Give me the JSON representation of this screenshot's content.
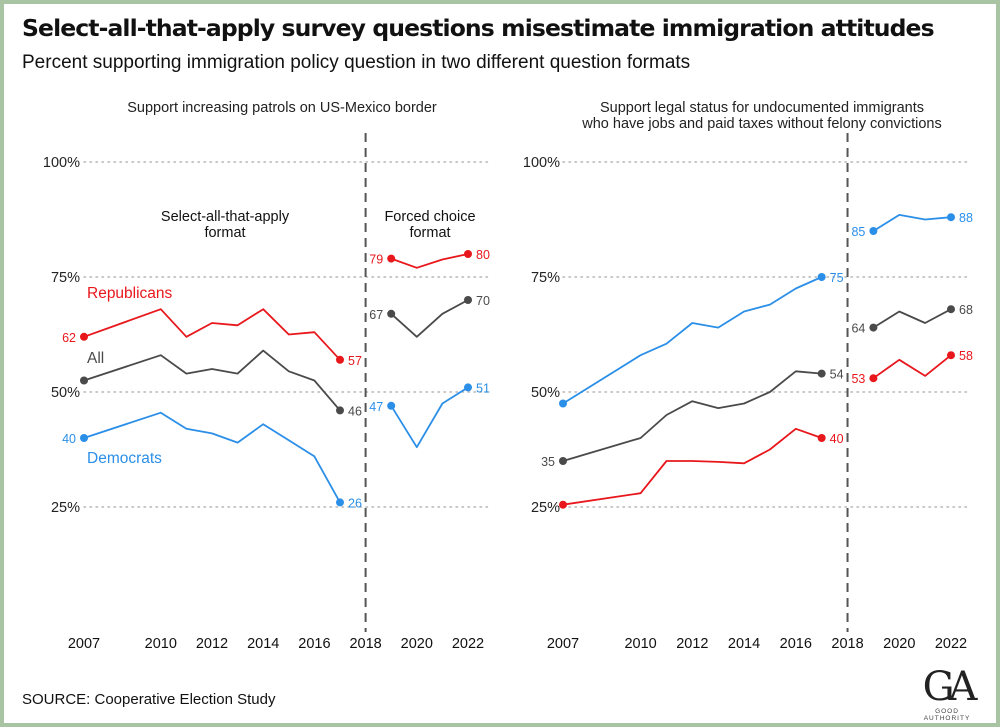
{
  "title": "Select-all-that-apply survey questions misestimate immigration attitudes",
  "subtitle": "Percent supporting immigration policy question in two different question formats",
  "source": "SOURCE: Cooperative Election Study",
  "logo": {
    "mark": "GA",
    "text": "GOOD AUTHORITY"
  },
  "colors": {
    "republicans": "#e8171c",
    "all": "#4a4a4a",
    "democrats": "#2b8fe8"
  },
  "chart_data": [
    {
      "type": "line",
      "title": "Support increasing patrols on US-Mexico border",
      "title_lines": [
        "Support increasing patrols on US-Mexico border"
      ],
      "x_ticks": [
        "2007",
        "2010",
        "2012",
        "2014",
        "2016",
        "2018",
        "2020",
        "2022"
      ],
      "xlim": [
        2007,
        2022
      ],
      "ylim": [
        0,
        100
      ],
      "y_ticks": [
        {
          "value": 100,
          "label": "100%"
        },
        {
          "value": 75,
          "label": "75%"
        },
        {
          "value": 50,
          "label": "50%"
        },
        {
          "value": 25,
          "label": "25%"
        }
      ],
      "grid": true,
      "divider_year": 2018,
      "format_labels": {
        "left": [
          "Select-all-that-apply",
          "format"
        ],
        "right": [
          "Forced choice",
          "format"
        ]
      },
      "series": [
        {
          "name": "Republicans",
          "key": "republicans",
          "show_name": true,
          "segments": [
            {
              "x": [
                2007,
                2010,
                2011,
                2012,
                2013,
                2014,
                2015,
                2016,
                2017
              ],
              "y": [
                62,
                68,
                62,
                65,
                64.5,
                68,
                62.5,
                63,
                57
              ],
              "start_label": "62",
              "end_label": "57"
            },
            {
              "x": [
                2019,
                2020,
                2021,
                2022
              ],
              "y": [
                79,
                77,
                78.8,
                80
              ],
              "start_label": "79",
              "end_label": "80"
            }
          ]
        },
        {
          "name": "All",
          "key": "all",
          "show_name": true,
          "segments": [
            {
              "x": [
                2007,
                2010,
                2011,
                2012,
                2013,
                2014,
                2015,
                2016,
                2017
              ],
              "y": [
                52.5,
                58,
                54,
                55,
                54,
                59,
                54.5,
                52.5,
                46
              ],
              "start_label": "",
              "end_label": "46"
            },
            {
              "x": [
                2019,
                2020,
                2021,
                2022
              ],
              "y": [
                67,
                62,
                67,
                70
              ],
              "start_label": "67",
              "end_label": "70"
            }
          ]
        },
        {
          "name": "Democrats",
          "key": "democrats",
          "show_name": true,
          "segments": [
            {
              "x": [
                2007,
                2010,
                2011,
                2012,
                2013,
                2014,
                2015,
                2016,
                2017
              ],
              "y": [
                40,
                45.5,
                42,
                41,
                39,
                43,
                39.5,
                36,
                26
              ],
              "start_label": "40",
              "end_label": "26"
            },
            {
              "x": [
                2019,
                2020,
                2021,
                2022
              ],
              "y": [
                47,
                38,
                47.5,
                51
              ],
              "start_label": "47",
              "end_label": "51"
            }
          ]
        }
      ]
    },
    {
      "type": "line",
      "title": "Support legal status for undocumented immigrants who have jobs and paid taxes without felony convictions",
      "title_lines": [
        "Support legal status for undocumented immigrants",
        "who have jobs and paid taxes without felony convictions"
      ],
      "x_ticks": [
        "2007",
        "2010",
        "2012",
        "2014",
        "2016",
        "2018",
        "2020",
        "2022"
      ],
      "xlim": [
        2007,
        2022
      ],
      "ylim": [
        0,
        100
      ],
      "y_ticks": [
        {
          "value": 100,
          "label": "100%"
        },
        {
          "value": 75,
          "label": "75%"
        },
        {
          "value": 50,
          "label": "50%"
        },
        {
          "value": 25,
          "label": "25%"
        }
      ],
      "grid": true,
      "divider_year": 2018,
      "series": [
        {
          "name": "Republicans",
          "key": "republicans",
          "show_name": false,
          "segments": [
            {
              "x": [
                2007,
                2010,
                2011,
                2012,
                2013,
                2014,
                2015,
                2016,
                2017
              ],
              "y": [
                25.5,
                28,
                35,
                35,
                34.8,
                34.5,
                37.5,
                42,
                40
              ],
              "start_label": "",
              "end_label": "40"
            },
            {
              "x": [
                2019,
                2020,
                2021,
                2022
              ],
              "y": [
                53,
                57,
                53.5,
                58
              ],
              "start_label": "53",
              "end_label": "58"
            }
          ]
        },
        {
          "name": "All",
          "key": "all",
          "show_name": false,
          "segments": [
            {
              "x": [
                2007,
                2010,
                2011,
                2012,
                2013,
                2014,
                2015,
                2016,
                2017
              ],
              "y": [
                35,
                40,
                45,
                48,
                46.5,
                47.5,
                50,
                54.5,
                54
              ],
              "start_label": "35",
              "end_label": "54"
            },
            {
              "x": [
                2019,
                2020,
                2021,
                2022
              ],
              "y": [
                64,
                67.5,
                65,
                68
              ],
              "start_label": "64",
              "end_label": "68"
            }
          ]
        },
        {
          "name": "Democrats",
          "key": "democrats",
          "show_name": false,
          "segments": [
            {
              "x": [
                2007,
                2010,
                2011,
                2012,
                2013,
                2014,
                2015,
                2016,
                2017
              ],
              "y": [
                47.5,
                58,
                60.5,
                65,
                64,
                67.5,
                69,
                72.5,
                75
              ],
              "start_label": "",
              "end_label": "75"
            },
            {
              "x": [
                2019,
                2020,
                2021,
                2022
              ],
              "y": [
                85,
                88.5,
                87.5,
                88
              ],
              "start_label": "85",
              "end_label": "88"
            }
          ]
        }
      ]
    }
  ]
}
